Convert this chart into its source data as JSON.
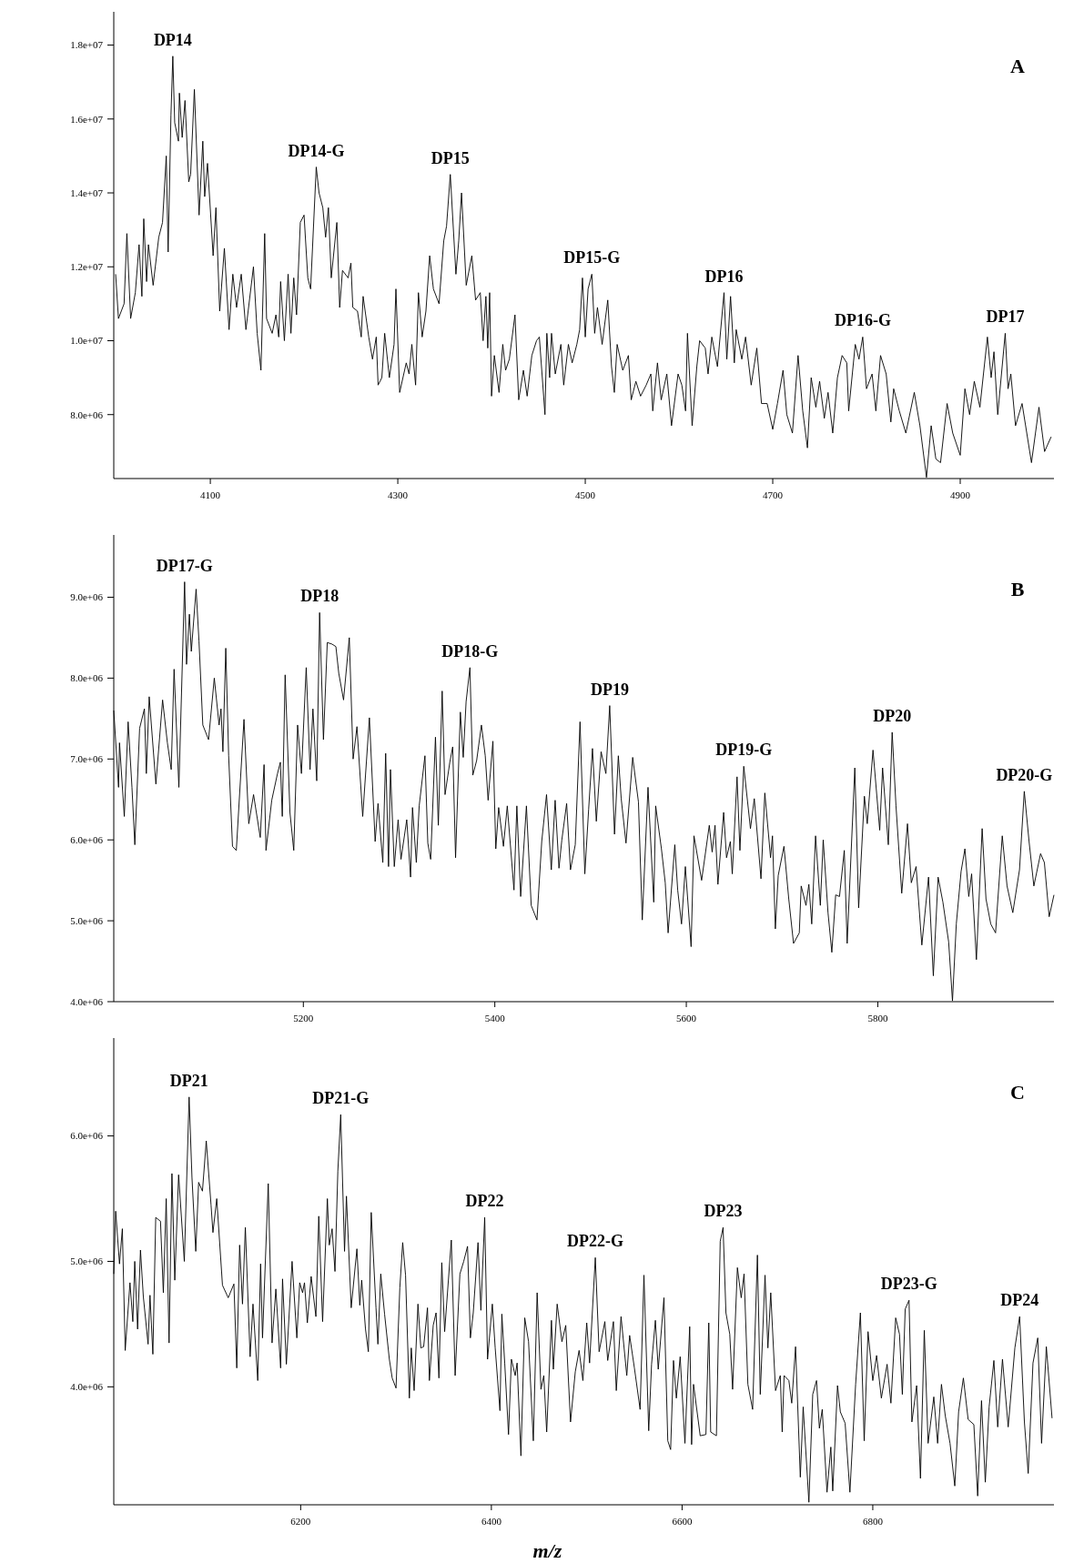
{
  "chart_data": [
    {
      "type": "line",
      "color": "#000000",
      "xlim": [
        3997,
        5000
      ],
      "ylim": [
        6270000.0,
        18900000.0
      ],
      "xticks": [
        4100,
        4300,
        4500,
        4700,
        4900
      ],
      "yticks": [
        {
          "value": 8000000.0,
          "label": "8.0e+06"
        },
        {
          "value": 10000000.0,
          "label": "1.0e+07"
        },
        {
          "value": 12000000.0,
          "label": "1.2e+07"
        },
        {
          "value": 14000000.0,
          "label": "1.4e+07"
        },
        {
          "value": 16000000.0,
          "label": "1.6e+07"
        },
        {
          "value": 18000000.0,
          "label": "1.8e+07"
        }
      ],
      "annotations": [
        "A",
        {
          "text": "DP14",
          "x": 4060,
          "y": 17700000.0
        },
        {
          "text": "DP14-G",
          "x": 4213,
          "y": 14700000.0
        },
        {
          "text": "DP15",
          "x": 4356,
          "y": 14500000.0
        },
        {
          "text": "DP15-G",
          "x": 4507,
          "y": 11800000.0
        },
        {
          "text": "DP16",
          "x": 4648,
          "y": 11300000.0
        },
        {
          "text": "DP16-G",
          "x": 4796,
          "y": 10100000.0
        },
        {
          "text": "DP17",
          "x": 4948,
          "y": 10200000.0
        }
      ],
      "x": [
        3999,
        4002,
        4008,
        4011,
        4015,
        4020,
        4024,
        4027,
        4029,
        4032,
        4034,
        4039,
        4045,
        4049,
        4053,
        4055,
        4058,
        4060,
        4062,
        4066,
        4067,
        4070,
        4073,
        4077,
        4079,
        4083,
        4088,
        4092,
        4094,
        4097,
        4103,
        4106,
        4110,
        4115,
        4120,
        4124,
        4128,
        4133,
        4138,
        4146,
        4150,
        4154,
        4158,
        4160,
        4166,
        4170,
        4173,
        4175,
        4179,
        4183,
        4186,
        4189,
        4192,
        4196,
        4200,
        4204,
        4207,
        4213,
        4216,
        4220,
        4223,
        4226,
        4229,
        4235,
        4238,
        4241,
        4247,
        4250,
        4252,
        4257,
        4261,
        4263,
        4269,
        4273,
        4277,
        4279,
        4283,
        4286,
        4291,
        4296,
        4298,
        4302,
        4309,
        4312,
        4315,
        4319,
        4322,
        4326,
        4330,
        4334,
        4338,
        4344,
        4349,
        4352,
        4356,
        4362,
        4365,
        4368,
        4373,
        4379,
        4383,
        4388,
        4391,
        4394,
        4396,
        4398,
        4400,
        4403,
        4408,
        4412,
        4415,
        4419,
        4425,
        4429,
        4434,
        4438,
        4443,
        4448,
        4451,
        4457,
        4459,
        4462,
        4464,
        4468,
        4474,
        4477,
        4482,
        4486,
        4491,
        4494,
        4497,
        4500,
        4503,
        4507,
        4510,
        4513,
        4518,
        4524,
        4528,
        4531,
        4534,
        4540,
        4546,
        4549,
        4554,
        4559,
        4565,
        4570,
        4572,
        4577,
        4581,
        4587,
        4592,
        4599,
        4603,
        4607,
        4609,
        4614,
        4619,
        4622,
        4628,
        4631,
        4635,
        4641,
        4648,
        4651,
        4655,
        4659,
        4661,
        4667,
        4671,
        4677,
        4683,
        4688,
        4694,
        4700,
        4705,
        4711,
        4715,
        4721,
        4727,
        4732,
        4737,
        4741,
        4746,
        4750,
        4755,
        4759,
        4764,
        4769,
        4774,
        4779,
        4781,
        4788,
        4792,
        4796,
        4800,
        4806,
        4810,
        4815,
        4821,
        4826,
        4829,
        4835,
        4842,
        4851,
        4857,
        4864,
        4869,
        4874,
        4879,
        4886,
        4892,
        4900,
        4905,
        4910,
        4915,
        4921,
        4929,
        4933,
        4936,
        4940,
        4948,
        4951,
        4954,
        4959,
        4966,
        4976,
        4984,
        4990,
        4997
      ],
      "values": [
        11800000.0,
        10600000.0,
        11000000.0,
        12900000.0,
        10600000.0,
        11300000.0,
        12600000.0,
        11200000.0,
        13300000.0,
        11600000.0,
        12600000.0,
        11500000.0,
        12800000.0,
        13200000.0,
        15000000.0,
        12400000.0,
        16100000.0,
        17700000.0,
        15900000.0,
        15400000.0,
        16700000.0,
        15500000.0,
        16500000.0,
        14300000.0,
        14500000.0,
        16800000.0,
        13400000.0,
        15400000.0,
        13900000.0,
        14800000.0,
        12300000.0,
        13600000.0,
        10800000.0,
        12500000.0,
        10300000.0,
        11800000.0,
        10900000.0,
        11800000.0,
        10300000.0,
        12000000.0,
        10200000.0,
        9200000.0,
        12900000.0,
        10600000.0,
        10200000.0,
        10700000.0,
        10100000.0,
        11600000.0,
        10000000.0,
        11800000.0,
        10200000.0,
        11700000.0,
        10700000.0,
        13200000.0,
        13400000.0,
        11700000.0,
        11400000.0,
        14700000.0,
        14000000.0,
        13600000.0,
        12800000.0,
        13600000.0,
        11700000.0,
        13200000.0,
        10900000.0,
        11900000.0,
        11700000.0,
        12100000.0,
        10900000.0,
        10800000.0,
        10100000.0,
        11200000.0,
        10100000.0,
        9500000.0,
        10100000.0,
        8800000.0,
        9000000.0,
        10200000.0,
        9000000.0,
        9900000.0,
        11400000.0,
        8600000.0,
        9400000.0,
        9100000.0,
        9900000.0,
        8800000.0,
        11300000.0,
        10100000.0,
        10800000.0,
        12300000.0,
        11400000.0,
        11000000.0,
        12700000.0,
        13100000.0,
        14500000.0,
        11800000.0,
        12700000.0,
        14000000.0,
        11500000.0,
        12300000.0,
        11100000.0,
        11300000.0,
        10000000.0,
        11200000.0,
        9800000.0,
        11300000.0,
        8500000.0,
        9600000.0,
        8600000.0,
        9900000.0,
        9200000.0,
        9500000.0,
        10700000.0,
        8400000.0,
        9200000.0,
        8500000.0,
        9600000.0,
        10000000.0,
        10100000.0,
        8000000.0,
        10200000.0,
        9000000.0,
        10200000.0,
        9100000.0,
        9900000.0,
        8800000.0,
        9900000.0,
        9400000.0,
        9900000.0,
        10300000.0,
        11700000.0,
        10100000.0,
        11400000.0,
        11800000.0,
        10200000.0,
        10900000.0,
        9900000.0,
        11100000.0,
        9300000.0,
        8600000.0,
        9900000.0,
        9200000.0,
        9600000.0,
        8400000.0,
        8900000.0,
        8500000.0,
        8800000.0,
        9100000.0,
        8100000.0,
        9400000.0,
        8400000.0,
        9100000.0,
        7700000.0,
        9100000.0,
        8800000.0,
        8100000.0,
        10200000.0,
        7700000.0,
        9300000.0,
        10000000.0,
        9800000.0,
        9100000.0,
        10100000.0,
        9300000.0,
        11300000.0,
        9500000.0,
        11200000.0,
        9400000.0,
        10300000.0,
        9500000.0,
        10100000.0,
        8800000.0,
        9800000.0,
        8300000.0,
        8300000.0,
        7600000.0,
        8300000.0,
        9200000.0,
        8000000.0,
        7500000.0,
        9600000.0,
        8100000.0,
        7100000.0,
        9000000.0,
        8200000.0,
        8900000.0,
        7900000.0,
        8600000.0,
        7500000.0,
        9000000.0,
        9600000.0,
        9400000.0,
        8100000.0,
        9900000.0,
        9500000.0,
        10100000.0,
        8700000.0,
        9100000.0,
        8100000.0,
        9600000.0,
        9100000.0,
        7800000.0,
        8700000.0,
        8100000.0,
        7500000.0,
        8600000.0,
        7700000.0,
        6300000.0,
        7700000.0,
        6800000.0,
        6700000.0,
        8300000.0,
        7500000.0,
        6900000.0,
        8700000.0,
        8000000.0,
        8900000.0,
        8200000.0,
        10100000.0,
        9000000.0,
        9700000.0,
        8000000.0,
        10200000.0,
        8700000.0,
        9100000.0,
        7700000.0,
        8300000.0,
        6700000.0,
        8200000.0,
        7000000.0,
        7400000.0
      ]
    },
    {
      "type": "line",
      "color": "#000000",
      "xlim": [
        5002,
        5984
      ],
      "ylim": [
        4000000.0,
        9770000.0
      ],
      "xticks": [
        5200,
        5400,
        5600,
        5800
      ],
      "yticks": [
        {
          "value": 4000000.0,
          "label": "4.0e+06"
        },
        {
          "value": 5000000.0,
          "label": "5.0e+06"
        },
        {
          "value": 6000000.0,
          "label": "6.0e+06"
        },
        {
          "value": 7000000.0,
          "label": "7.0e+06"
        },
        {
          "value": 8000000.0,
          "label": "8.0e+06"
        },
        {
          "value": 9000000.0,
          "label": "9.0e+06"
        }
      ],
      "annotations": [
        "B",
        {
          "text": "DP17-G",
          "x": 5076,
          "y": 9190000.0
        },
        {
          "text": "DP18",
          "x": 5217,
          "y": 8810000.0
        },
        {
          "text": "DP18-G",
          "x": 5374,
          "y": 8130000.0
        },
        {
          "text": "DP19",
          "x": 5520,
          "y": 7660000.0
        },
        {
          "text": "DP19-G",
          "x": 5660,
          "y": 6910000.0
        },
        {
          "text": "DP20",
          "x": 5815,
          "y": 7330000.0
        },
        {
          "text": "DP20-G",
          "x": 5953,
          "y": 6600000.0
        }
      ],
      "x": [
        5002,
        5007,
        5008,
        5013,
        5017,
        5021,
        5024,
        5029,
        5034,
        5036,
        5039,
        5046,
        5053,
        5058,
        5062,
        5065,
        5070,
        5076,
        5078,
        5081,
        5083,
        5088,
        5091,
        5095,
        5101,
        5107,
        5112,
        5114,
        5116,
        5119,
        5122,
        5126,
        5130,
        5138,
        5143,
        5148,
        5155,
        5159,
        5161,
        5167,
        5173,
        5176,
        5178,
        5181,
        5186,
        5190,
        5194,
        5198,
        5203,
        5207,
        5210,
        5214,
        5217,
        5221,
        5225,
        5230,
        5234,
        5237,
        5242,
        5248,
        5252,
        5256,
        5262,
        5269,
        5275,
        5278,
        5283,
        5286,
        5289,
        5291,
        5295,
        5299,
        5302,
        5308,
        5312,
        5314,
        5318,
        5321,
        5327,
        5330,
        5333,
        5338,
        5341,
        5345,
        5348,
        5353,
        5356,
        5359,
        5364,
        5367,
        5370,
        5374,
        5377,
        5381,
        5386,
        5390,
        5393,
        5398,
        5401,
        5404,
        5409,
        5413,
        5420,
        5423,
        5427,
        5433,
        5438,
        5444,
        5449,
        5454,
        5459,
        5463,
        5467,
        5470,
        5475,
        5479,
        5484,
        5489,
        5494,
        5498,
        5502,
        5506,
        5511,
        5516,
        5520,
        5525,
        5529,
        5532,
        5537,
        5544,
        5550,
        5554,
        5560,
        5566,
        5568,
        5574,
        5578,
        5581,
        5588,
        5591,
        5595,
        5599,
        5605,
        5608,
        5616,
        5624,
        5627,
        5630,
        5633,
        5639,
        5642,
        5646,
        5648,
        5653,
        5656,
        5660,
        5667,
        5671,
        5678,
        5682,
        5688,
        5690,
        5693,
        5696,
        5702,
        5707,
        5712,
        5718,
        5720,
        5725,
        5728,
        5731,
        5735,
        5740,
        5743,
        5748,
        5752,
        5756,
        5760,
        5765,
        5768,
        5776,
        5780,
        5786,
        5789,
        5795,
        5802,
        5805,
        5811,
        5815,
        5819,
        5825,
        5831,
        5835,
        5840,
        5846,
        5853,
        5858,
        5863,
        5868,
        5874,
        5878,
        5882,
        5887,
        5891,
        5895,
        5898,
        5903,
        5909,
        5913,
        5918,
        5923,
        5930,
        5935,
        5941,
        5948,
        5953,
        5958,
        5963,
        5970,
        5974,
        5979,
        5984
      ],
      "values": [
        7600000.0,
        6650000.0,
        7200000.0,
        6290000.0,
        7460000.0,
        6650000.0,
        5940000.0,
        7380000.0,
        7620000.0,
        6820000.0,
        7770000.0,
        6690000.0,
        7730000.0,
        7200000.0,
        6870000.0,
        8110000.0,
        6650000.0,
        9190000.0,
        8170000.0,
        8790000.0,
        8330000.0,
        9100000.0,
        8460000.0,
        7420000.0,
        7240000.0,
        8000000.0,
        7420000.0,
        7620000.0,
        7090000.0,
        8370000.0,
        7040000.0,
        5920000.0,
        5870000.0,
        7490000.0,
        6200000.0,
        6560000.0,
        6030000.0,
        6930000.0,
        5870000.0,
        6490000.0,
        6820000.0,
        6960000.0,
        6290000.0,
        8040000.0,
        6340000.0,
        5870000.0,
        7420000.0,
        6820000.0,
        8130000.0,
        6870000.0,
        7620000.0,
        6730000.0,
        8810000.0,
        7240000.0,
        8440000.0,
        8420000.0,
        8390000.0,
        8060000.0,
        7730000.0,
        8500000.0,
        7000000.0,
        7400000.0,
        6290000.0,
        7510000.0,
        5980000.0,
        6450000.0,
        5720000.0,
        7070000.0,
        5670000.0,
        6870000.0,
        5670000.0,
        6250000.0,
        5760000.0,
        6250000.0,
        5540000.0,
        6400000.0,
        5720000.0,
        6420000.0,
        7040000.0,
        5960000.0,
        5760000.0,
        7270000.0,
        6180000.0,
        7840000.0,
        6560000.0,
        6960000.0,
        7150000.0,
        5780000.0,
        7580000.0,
        7020000.0,
        7710000.0,
        8130000.0,
        6800000.0,
        6980000.0,
        7420000.0,
        7040000.0,
        6490000.0,
        7220000.0,
        5890000.0,
        6400000.0,
        5920000.0,
        6420000.0,
        5380000.0,
        6420000.0,
        5300000.0,
        6420000.0,
        5190000.0,
        5010000.0,
        5980000.0,
        6560000.0,
        5630000.0,
        6490000.0,
        5650000.0,
        6000000.0,
        6450000.0,
        5630000.0,
        5940000.0,
        7460000.0,
        5580000.0,
        6380000.0,
        7130000.0,
        6230000.0,
        7090000.0,
        6820000.0,
        7660000.0,
        6070000.0,
        7040000.0,
        6510000.0,
        5960000.0,
        7020000.0,
        6470000.0,
        5010000.0,
        6650000.0,
        5230000.0,
        6420000.0,
        5890000.0,
        5470000.0,
        4850000.0,
        5940000.0,
        5380000.0,
        4960000.0,
        5670000.0,
        4680000.0,
        6050000.0,
        5500000.0,
        6180000.0,
        5850000.0,
        6180000.0,
        5450000.0,
        6340000.0,
        5780000.0,
        5980000.0,
        5580000.0,
        6780000.0,
        5870000.0,
        6910000.0,
        6140000.0,
        6510000.0,
        5520000.0,
        6580000.0,
        5780000.0,
        6050000.0,
        4900000.0,
        5560000.0,
        5920000.0,
        5270000.0,
        4720000.0,
        4850000.0,
        5430000.0,
        5190000.0,
        5450000.0,
        4960000.0,
        6050000.0,
        5190000.0,
        6000000.0,
        5100000.0,
        4610000.0,
        5320000.0,
        5300000.0,
        5870000.0,
        4720000.0,
        6890000.0,
        5160000.0,
        6540000.0,
        6200000.0,
        7110000.0,
        6120000.0,
        6890000.0,
        5940000.0,
        7330000.0,
        6420000.0,
        5340000.0,
        6200000.0,
        5470000.0,
        5670000.0,
        4700000.0,
        5540000.0,
        4320000.0,
        5540000.0,
        5230000.0,
        4740000.0,
        4010000.0,
        4960000.0,
        5610000.0,
        5890000.0,
        5300000.0,
        5580000.0,
        4520000.0,
        6140000.0,
        5270000.0,
        4960000.0,
        4850000.0,
        6050000.0,
        5430000.0,
        5100000.0,
        5630000.0,
        6600000.0,
        5980000.0,
        5430000.0,
        5830000.0,
        5720000.0,
        5050000.0,
        5320000.0
      ]
    },
    {
      "type": "line",
      "color": "#000000",
      "xlabel": "m/z",
      "xlim": [
        6004,
        6990
      ],
      "ylim": [
        3060000.0,
        6780000.0
      ],
      "xticks": [
        6200,
        6400,
        6600,
        6800
      ],
      "yticks": [
        {
          "value": 4000000.0,
          "label": "4.0e+06"
        },
        {
          "value": 5000000.0,
          "label": "5.0e+06"
        },
        {
          "value": 6000000.0,
          "label": "6.0e+06"
        }
      ],
      "annotations": [
        "C",
        {
          "text": "DP21",
          "x": 6083,
          "y": 6310000.0
        },
        {
          "text": "DP21-G",
          "x": 6242,
          "y": 6170000.0
        },
        {
          "text": "DP22",
          "x": 6393,
          "y": 5350000.0
        },
        {
          "text": "DP22-G",
          "x": 6509,
          "y": 5030000.0
        },
        {
          "text": "DP23",
          "x": 6643,
          "y": 5270000.0
        },
        {
          "text": "DP23-G",
          "x": 6838,
          "y": 4690000.0
        },
        {
          "text": "DP24",
          "x": 6954,
          "y": 4560000.0
        }
      ],
      "x": [
        6004,
        6006,
        6010,
        6013,
        6016,
        6021,
        6024,
        6026,
        6029,
        6032,
        6035,
        6040,
        6042,
        6045,
        6048,
        6053,
        6056,
        6059,
        6062,
        6065,
        6068,
        6072,
        6078,
        6083,
        6086,
        6090,
        6093,
        6097,
        6101,
        6106,
        6108,
        6112,
        6118,
        6124,
        6130,
        6133,
        6136,
        6139,
        6142,
        6147,
        6150,
        6155,
        6158,
        6160,
        6166,
        6170,
        6174,
        6179,
        6181,
        6185,
        6191,
        6196,
        6199,
        6202,
        6204,
        6207,
        6211,
        6216,
        6219,
        6223,
        6228,
        6230,
        6233,
        6236,
        6239,
        6242,
        6246,
        6248,
        6253,
        6259,
        6262,
        6264,
        6268,
        6271,
        6274,
        6279,
        6281,
        6284,
        6288,
        6293,
        6296,
        6300,
        6304,
        6307,
        6310,
        6314,
        6316,
        6319,
        6323,
        6326,
        6329,
        6333,
        6335,
        6339,
        6342,
        6345,
        6348,
        6351,
        6358,
        6362,
        6367,
        6371,
        6375,
        6378,
        6381,
        6386,
        6389,
        6393,
        6396,
        6401,
        6404,
        6409,
        6411,
        6414,
        6418,
        6421,
        6425,
        6427,
        6431,
        6435,
        6439,
        6444,
        6448,
        6452,
        6455,
        6458,
        6463,
        6465,
        6469,
        6474,
        6478,
        6483,
        6488,
        6492,
        6496,
        6500,
        6503,
        6509,
        6513,
        6519,
        6522,
        6528,
        6531,
        6536,
        6542,
        6545,
        6550,
        6556,
        6560,
        6565,
        6568,
        6572,
        6575,
        6581,
        6585,
        6588,
        6591,
        6594,
        6598,
        6603,
        6608,
        6610,
        6612,
        6619,
        6625,
        6628,
        6630,
        6636,
        6640,
        6643,
        6646,
        6650,
        6653,
        6658,
        6662,
        6665,
        6669,
        6674,
        6679,
        6682,
        6687,
        6690,
        6693,
        6698,
        6703,
        6705,
        6707,
        6712,
        6715,
        6719,
        6724,
        6727,
        6733,
        6737,
        6741,
        6744,
        6747,
        6752,
        6756,
        6758,
        6763,
        6766,
        6771,
        6776,
        6782,
        6787,
        6791,
        6795,
        6800,
        6804,
        6809,
        6815,
        6819,
        6824,
        6828,
        6831,
        6834,
        6838,
        6841,
        6846,
        6850,
        6854,
        6858,
        6864,
        6868,
        6872,
        6876,
        6881,
        6886,
        6890,
        6895,
        6900,
        6906,
        6910,
        6914,
        6918,
        6922,
        6927,
        6931,
        6936,
        6942,
        6949,
        6954,
        6959,
        6963,
        6968,
        6973,
        6977,
        6982,
        6988
      ],
      "values": [
        4900000.0,
        5400000.0,
        4980000.0,
        5260000.0,
        4290000.0,
        4830000.0,
        4520000.0,
        5000000.0,
        4460000.0,
        5090000.0,
        4720000.0,
        4340000.0,
        4730000.0,
        4260000.0,
        5350000.0,
        5320000.0,
        4750000.0,
        5500000.0,
        4350000.0,
        5700000.0,
        4850000.0,
        5690000.0,
        5000000.0,
        6310000.0,
        5670000.0,
        5080000.0,
        5630000.0,
        5560000.0,
        5960000.0,
        5450000.0,
        5230000.0,
        5500000.0,
        4810000.0,
        4710000.0,
        4820000.0,
        4150000.0,
        5130000.0,
        4660000.0,
        5270000.0,
        4240000.0,
        4660000.0,
        4050000.0,
        4980000.0,
        4390000.0,
        5620000.0,
        4350000.0,
        4780000.0,
        4150000.0,
        4860000.0,
        4180000.0,
        5000000.0,
        4390000.0,
        4830000.0,
        4750000.0,
        4830000.0,
        4510000.0,
        4880000.0,
        4560000.0,
        5360000.0,
        4520000.0,
        5500000.0,
        5130000.0,
        5260000.0,
        4920000.0,
        5720000.0,
        6170000.0,
        5080000.0,
        5520000.0,
        4630000.0,
        5100000.0,
        4650000.0,
        4850000.0,
        4460000.0,
        4280000.0,
        5390000.0,
        4630000.0,
        4340000.0,
        4900000.0,
        4580000.0,
        4220000.0,
        4070000.0,
        3990000.0,
        4790000.0,
        5150000.0,
        4890000.0,
        3910000.0,
        4310000.0,
        3970000.0,
        4660000.0,
        4310000.0,
        4320000.0,
        4630000.0,
        4050000.0,
        4490000.0,
        4590000.0,
        4070000.0,
        4990000.0,
        4440000.0,
        5170000.0,
        4090000.0,
        4900000.0,
        5000000.0,
        5120000.0,
        4390000.0,
        4590000.0,
        5150000.0,
        4610000.0,
        5350000.0,
        4220000.0,
        4660000.0,
        4310000.0,
        3810000.0,
        4580000.0,
        4190000.0,
        3620000.0,
        4220000.0,
        4090000.0,
        4190000.0,
        3450000.0,
        4550000.0,
        4360000.0,
        3570000.0,
        4750000.0,
        3980000.0,
        4090000.0,
        3640000.0,
        4530000.0,
        4140000.0,
        4660000.0,
        4360000.0,
        4490000.0,
        3720000.0,
        4120000.0,
        4290000.0,
        4050000.0,
        4510000.0,
        4190000.0,
        5030000.0,
        4280000.0,
        4520000.0,
        4210000.0,
        4520000.0,
        3970000.0,
        4560000.0,
        4090000.0,
        4410000.0,
        4150000.0,
        3820000.0,
        4890000.0,
        3650000.0,
        4180000.0,
        4530000.0,
        4140000.0,
        4710000.0,
        3570000.0,
        3500000.0,
        4210000.0,
        3910000.0,
        4240000.0,
        3550000.0,
        4480000.0,
        3540000.0,
        4020000.0,
        3610000.0,
        3620000.0,
        4510000.0,
        3640000.0,
        3610000.0,
        5160000.0,
        5270000.0,
        4590000.0,
        4420000.0,
        3980000.0,
        4950000.0,
        4710000.0,
        4900000.0,
        4020000.0,
        3820000.0,
        5050000.0,
        3940000.0,
        4890000.0,
        4310000.0,
        4750000.0,
        3970000.0,
        4090000.0,
        3640000.0,
        4090000.0,
        4050000.0,
        3870000.0,
        4320000.0,
        3280000.0,
        3840000.0,
        3080000.0,
        3940000.0,
        4050000.0,
        3670000.0,
        3820000.0,
        3160000.0,
        3520000.0,
        3170000.0,
        4010000.0,
        3800000.0,
        3710000.0,
        3160000.0,
        4020000.0,
        4590000.0,
        3570000.0,
        4440000.0,
        4050000.0,
        4250000.0,
        3910000.0,
        4180000.0,
        3870000.0,
        4550000.0,
        4420000.0,
        3940000.0,
        4620000.0,
        4690000.0,
        3720000.0,
        4010000.0,
        3270000.0,
        4450000.0,
        3550000.0,
        3920000.0,
        3550000.0,
        4020000.0,
        3770000.0,
        3550000.0,
        3210000.0,
        3800000.0,
        4070000.0,
        3740000.0,
        3700000.0,
        3130000.0,
        3890000.0,
        3240000.0,
        3840000.0,
        4210000.0,
        3680000.0,
        4220000.0,
        3680000.0,
        4310000.0,
        4560000.0,
        3720000.0,
        3310000.0,
        4190000.0,
        4390000.0,
        3550000.0,
        4320000.0,
        3750000.0
      ]
    }
  ]
}
